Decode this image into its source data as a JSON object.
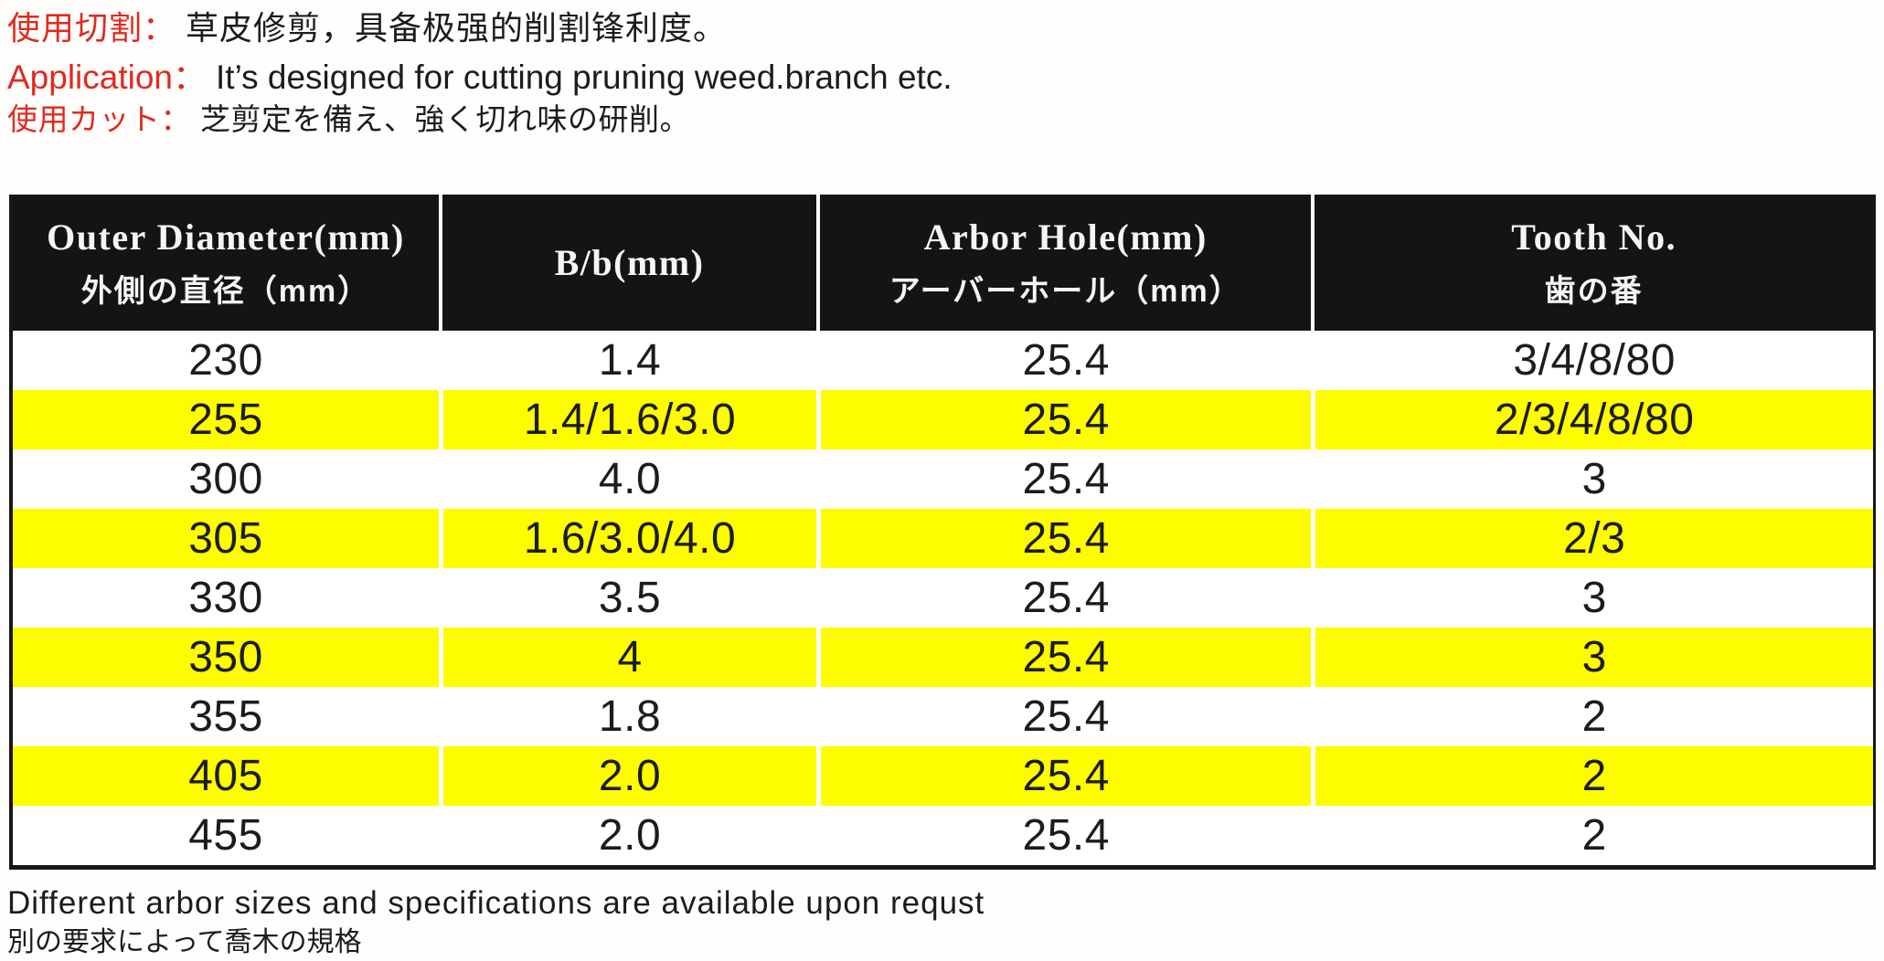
{
  "intro": {
    "line1": {
      "label": "使用切割：",
      "text": "草皮修剪，具备极强的削割锋利度。"
    },
    "line2": {
      "label": "Application：",
      "text": "It’s designed for cutting pruning weed.branch etc."
    },
    "line3": {
      "label": "使用カット：",
      "text": "芝剪定を備え、強く切れ味の研削。"
    }
  },
  "table": {
    "columns": [
      {
        "en": "Outer Diameter(mm)",
        "local": "外側の直径（mm）"
      },
      {
        "en": "B/b(mm)",
        "local": ""
      },
      {
        "en": "Arbor Hole(mm)",
        "local": "アーバーホール（mm）"
      },
      {
        "en": "Tooth No.",
        "local": "歯の番"
      }
    ],
    "rows": [
      {
        "cells": [
          "230",
          "1.4",
          "25.4",
          "3/4/8/80"
        ],
        "highlight": false
      },
      {
        "cells": [
          "255",
          "1.4/1.6/3.0",
          "25.4",
          "2/3/4/8/80"
        ],
        "highlight": true
      },
      {
        "cells": [
          "300",
          "4.0",
          "25.4",
          "3"
        ],
        "highlight": false
      },
      {
        "cells": [
          "305",
          "1.6/3.0/4.0",
          "25.4",
          "2/3"
        ],
        "highlight": true
      },
      {
        "cells": [
          "330",
          "3.5",
          "25.4",
          "3"
        ],
        "highlight": false
      },
      {
        "cells": [
          "350",
          "4",
          "25.4",
          "3"
        ],
        "highlight": true
      },
      {
        "cells": [
          "355",
          "1.8",
          "25.4",
          "2"
        ],
        "highlight": false
      },
      {
        "cells": [
          "405",
          "2.0",
          "25.4",
          "2"
        ],
        "highlight": true
      },
      {
        "cells": [
          "455",
          "2.0",
          "25.4",
          "2"
        ],
        "highlight": false
      }
    ]
  },
  "footer": {
    "line1": "Different arbor sizes and specifications are available upon requst",
    "line2": "別の要求によって喬木の規格"
  },
  "colors": {
    "accent_red": "#e02a1f",
    "highlight_yellow": "#fdfd00",
    "header_black": "#141414"
  }
}
